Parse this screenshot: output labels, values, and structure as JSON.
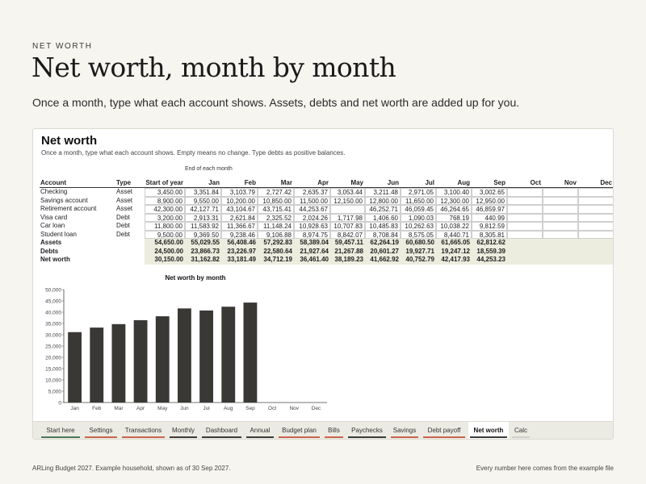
{
  "page": {
    "eyebrow": "NET WORTH",
    "headline": "Net worth, month by month",
    "lede": "Once a month, type what each account shows. Assets, debts and net worth are added up for you."
  },
  "sheet": {
    "title": "Net worth",
    "subtitle": "Once a month, type what each account shows. Empty means no change. Type debts as positive balances.",
    "end_of_month_label": "End of each month",
    "headers": [
      "Account",
      "Type",
      "Start of year",
      "Jan",
      "Feb",
      "Mar",
      "Apr",
      "May",
      "Jun",
      "Jul",
      "Aug",
      "Sep",
      "Oct",
      "Nov",
      "Dec"
    ],
    "accounts": [
      {
        "name": "Checking",
        "type": "Asset",
        "vals": [
          "3,450.00",
          "3,351.84",
          "3,103.79",
          "2,727.42",
          "2,635.37",
          "3,053.44",
          "3,211.48",
          "2,971.05",
          "3,100.40",
          "3,002.65",
          "",
          "",
          ""
        ]
      },
      {
        "name": "Savings account",
        "type": "Asset",
        "vals": [
          "8,900.00",
          "9,550.00",
          "10,200.00",
          "10,850.00",
          "11,500.00",
          "12,150.00",
          "12,800.00",
          "11,650.00",
          "12,300.00",
          "12,950.00",
          "",
          "",
          ""
        ]
      },
      {
        "name": "Retirement account",
        "type": "Asset",
        "vals": [
          "42,300.00",
          "42,127.71",
          "43,104.67",
          "43,715.41",
          "44,253.67",
          "",
          "46,252.71",
          "46,059.45",
          "46,264.65",
          "46,859.97",
          "",
          "",
          ""
        ]
      },
      {
        "name": "Visa card",
        "type": "Debt",
        "vals": [
          "3,200.00",
          "2,913.31",
          "2,621.84",
          "2,325.52",
          "2,024.26",
          "1,717.98",
          "1,406.60",
          "1,090.03",
          "768.19",
          "440.99",
          "",
          "",
          ""
        ]
      },
      {
        "name": "Car loan",
        "type": "Debt",
        "vals": [
          "11,800.00",
          "11,583.92",
          "11,366.67",
          "11,148.24",
          "10,928.63",
          "10,707.83",
          "10,485.83",
          "10,262.63",
          "10,038.22",
          "9,812.59",
          "",
          "",
          ""
        ]
      },
      {
        "name": "Student loan",
        "type": "Debt",
        "vals": [
          "9,500.00",
          "9,369.50",
          "9,238.46",
          "9,106.88",
          "8,974.75",
          "8,842.07",
          "8,708.84",
          "8,575.05",
          "8,440.71",
          "8,305.81",
          "",
          "",
          ""
        ]
      }
    ],
    "totals": [
      {
        "name": "Assets",
        "vals": [
          "54,650.00",
          "55,029.55",
          "56,408.46",
          "57,292.83",
          "58,389.04",
          "59,457.11",
          "62,264.19",
          "60,680.50",
          "61,665.05",
          "62,812.62",
          "",
          "",
          ""
        ]
      },
      {
        "name": "Debts",
        "vals": [
          "24,500.00",
          "23,866.73",
          "23,226.97",
          "22,580.64",
          "21,927.64",
          "21,267.88",
          "20,601.27",
          "19,927.71",
          "19,247.12",
          "18,559.39",
          "",
          "",
          ""
        ]
      },
      {
        "name": "Net worth",
        "vals": [
          "30,150.00",
          "31,162.82",
          "33,181.49",
          "34,712.19",
          "36,461.40",
          "38,189.23",
          "41,662.92",
          "40,752.79",
          "42,417.93",
          "44,253.23",
          "",
          "",
          ""
        ]
      }
    ]
  },
  "chart_data": {
    "type": "bar",
    "title": "Net worth by month",
    "categories": [
      "Jan",
      "Feb",
      "Mar",
      "Apr",
      "May",
      "Jun",
      "Jul",
      "Aug",
      "Sep",
      "Oct",
      "Nov",
      "Dec"
    ],
    "values": [
      31162.82,
      33181.49,
      34712.19,
      36461.4,
      38189.23,
      41662.92,
      40752.79,
      42417.93,
      44253.23,
      null,
      null,
      null
    ],
    "ylim": [
      0,
      50000
    ],
    "yticks": [
      "0",
      "5,000",
      "10,000",
      "15,000",
      "20,000",
      "25,000",
      "30,000",
      "35,000",
      "40,000",
      "45,000",
      "50,000"
    ],
    "bar_color": "#3a3835"
  },
  "tabs": [
    {
      "label": "Start here",
      "color": "#4a7a5a"
    },
    {
      "label": "Settings",
      "color": "#c9644e"
    },
    {
      "label": "Transactions",
      "color": "#c9644e"
    },
    {
      "label": "Monthly",
      "color": "#3b3b3b"
    },
    {
      "label": "Dashboard",
      "color": "#3b3b3b"
    },
    {
      "label": "Annual",
      "color": "#3b3b3b"
    },
    {
      "label": "Budget plan",
      "color": "#c9644e"
    },
    {
      "label": "Bills",
      "color": "#c9644e"
    },
    {
      "label": "Paychecks",
      "color": "#3b3b3b"
    },
    {
      "label": "Savings",
      "color": "#c9644e"
    },
    {
      "label": "Debt payoff",
      "color": "#c9644e"
    },
    {
      "label": "Net worth",
      "color": "#3b3b3b",
      "active": true
    },
    {
      "label": "Calc",
      "color": "#cfcfcf"
    }
  ],
  "footer": {
    "left": "ARLing Budget 2027. Example household, shown as of 30 Sep 2027.",
    "right": "Every number here comes from the example file"
  }
}
